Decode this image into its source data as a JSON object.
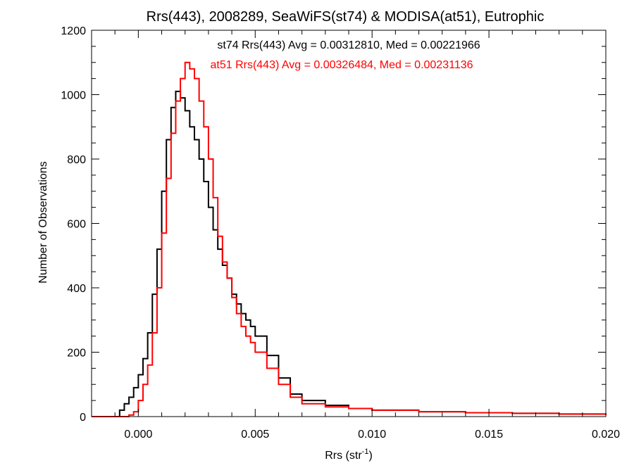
{
  "chart_data": {
    "type": "line",
    "title": "Rrs(443), 2008289, SeaWiFS(st74) & MODISA(at51), Eutrophic",
    "xlabel": {
      "main": "Rrs (str",
      "sup": "-1",
      "close": ")"
    },
    "ylabel": "Number of Observations",
    "xlim": [
      -0.002,
      0.02
    ],
    "ylim": [
      0,
      1200
    ],
    "x_ticks": [
      {
        "value": 0.0,
        "label": "0.000"
      },
      {
        "value": 0.005,
        "label": "0.005"
      },
      {
        "value": 0.01,
        "label": "0.010"
      },
      {
        "value": 0.015,
        "label": "0.015"
      },
      {
        "value": 0.02,
        "label": "0.020"
      }
    ],
    "y_ticks": [
      {
        "value": 0,
        "label": "0"
      },
      {
        "value": 200,
        "label": "200"
      },
      {
        "value": 400,
        "label": "400"
      },
      {
        "value": 600,
        "label": "600"
      },
      {
        "value": 800,
        "label": "800"
      },
      {
        "value": 1000,
        "label": "1000"
      },
      {
        "value": 1200,
        "label": "1200"
      }
    ],
    "x_minor_step": 0.001,
    "y_minor_step": 50,
    "grid": false,
    "annotations": [
      {
        "text": "st74 Rrs(443) Avg = 0.00312810, Med = 0.00221966",
        "color": "#000000"
      },
      {
        "text": "at51 Rrs(443) Avg = 0.00326484, Med = 0.00231136",
        "color": "#ff0000"
      }
    ],
    "series": [
      {
        "color": "#000000",
        "step": "histogram",
        "points": [
          [
            -0.002,
            0
          ],
          [
            -0.001,
            0
          ],
          [
            -0.0008,
            20
          ],
          [
            -0.0006,
            40
          ],
          [
            -0.0004,
            60
          ],
          [
            -0.0002,
            90
          ],
          [
            0.0,
            130
          ],
          [
            0.0002,
            180
          ],
          [
            0.0004,
            260
          ],
          [
            0.0006,
            380
          ],
          [
            0.0008,
            520
          ],
          [
            0.001,
            700
          ],
          [
            0.0012,
            860
          ],
          [
            0.0014,
            960
          ],
          [
            0.0016,
            1010
          ],
          [
            0.0018,
            990
          ],
          [
            0.002,
            950
          ],
          [
            0.0022,
            900
          ],
          [
            0.0024,
            860
          ],
          [
            0.0026,
            800
          ],
          [
            0.0028,
            730
          ],
          [
            0.003,
            650
          ],
          [
            0.0032,
            580
          ],
          [
            0.0034,
            520
          ],
          [
            0.0036,
            470
          ],
          [
            0.0038,
            430
          ],
          [
            0.004,
            380
          ],
          [
            0.0042,
            350
          ],
          [
            0.0044,
            320
          ],
          [
            0.0046,
            300
          ],
          [
            0.0048,
            280
          ],
          [
            0.005,
            250
          ],
          [
            0.0055,
            190
          ],
          [
            0.006,
            120
          ],
          [
            0.0065,
            70
          ],
          [
            0.007,
            50
          ],
          [
            0.008,
            35
          ],
          [
            0.009,
            25
          ],
          [
            0.01,
            20
          ],
          [
            0.012,
            15
          ],
          [
            0.014,
            12
          ],
          [
            0.016,
            10
          ],
          [
            0.018,
            8
          ],
          [
            0.02,
            5
          ]
        ]
      },
      {
        "color": "#ff0000",
        "step": "histogram",
        "points": [
          [
            -0.002,
            0
          ],
          [
            -0.0006,
            0
          ],
          [
            -0.0004,
            5
          ],
          [
            -0.0002,
            15
          ],
          [
            0.0,
            50
          ],
          [
            0.0002,
            100
          ],
          [
            0.0004,
            160
          ],
          [
            0.0006,
            260
          ],
          [
            0.0008,
            400
          ],
          [
            0.001,
            570
          ],
          [
            0.0012,
            740
          ],
          [
            0.0014,
            880
          ],
          [
            0.0016,
            980
          ],
          [
            0.0018,
            1050
          ],
          [
            0.002,
            1100
          ],
          [
            0.0022,
            1080
          ],
          [
            0.0024,
            1050
          ],
          [
            0.0026,
            980
          ],
          [
            0.0028,
            900
          ],
          [
            0.003,
            800
          ],
          [
            0.0032,
            680
          ],
          [
            0.0034,
            560
          ],
          [
            0.0036,
            480
          ],
          [
            0.0038,
            430
          ],
          [
            0.004,
            370
          ],
          [
            0.0042,
            320
          ],
          [
            0.0044,
            280
          ],
          [
            0.0046,
            250
          ],
          [
            0.0048,
            230
          ],
          [
            0.005,
            200
          ],
          [
            0.0055,
            150
          ],
          [
            0.006,
            100
          ],
          [
            0.0065,
            60
          ],
          [
            0.007,
            40
          ],
          [
            0.008,
            30
          ],
          [
            0.009,
            25
          ],
          [
            0.01,
            20
          ],
          [
            0.012,
            15
          ],
          [
            0.014,
            12
          ],
          [
            0.016,
            10
          ],
          [
            0.018,
            8
          ],
          [
            0.02,
            5
          ]
        ]
      }
    ]
  }
}
